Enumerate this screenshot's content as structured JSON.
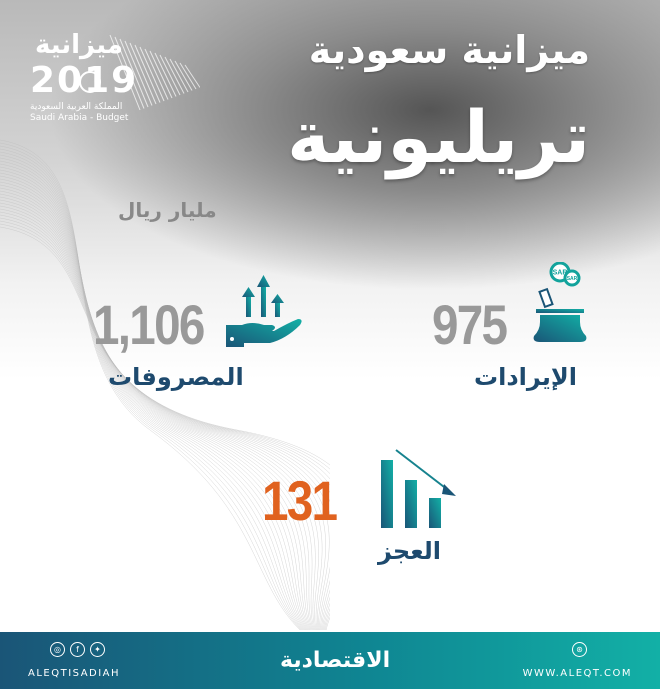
{
  "header": {
    "title": "ميزانية سعودية",
    "subtitle": "تريليونية",
    "unit": "مليار ريال"
  },
  "logo": {
    "arabic": "ميزانية",
    "year": "2019",
    "line1": "المملكة العربية السعودية",
    "line2": "Saudi Arabia - Budget"
  },
  "stats": {
    "revenue": {
      "value": "975",
      "label": "الإيرادات",
      "icon": "money-bag-icon",
      "coin_text": "SAR"
    },
    "expenses": {
      "value": "1,106",
      "label": "المصروفات",
      "icon": "hand-arrows-up-icon"
    },
    "deficit": {
      "value": "131",
      "label": "العجز",
      "icon": "bar-chart-down-icon"
    }
  },
  "colors": {
    "number_gray": "#999999",
    "label_navy": "#1e4a6e",
    "deficit_orange": "#e0621f",
    "teal": "#12a39c",
    "footer_start": "#1a5577",
    "footer_end": "#12b0a6"
  },
  "footer": {
    "handle": "ALEQTISADIAH",
    "brand": "الاقتصادية",
    "website": "WWW.ALEQT.COM",
    "social": [
      "instagram",
      "facebook",
      "twitter"
    ]
  }
}
